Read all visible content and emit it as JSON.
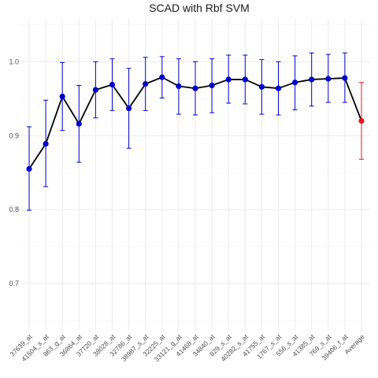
{
  "chart_data": {
    "type": "line",
    "title": "SCAD with Rbf SVM",
    "xlabel": "",
    "ylabel": "",
    "ylim": [
      0.636,
      1.058
    ],
    "yticks": [
      0.7,
      0.8,
      0.9,
      1.0
    ],
    "grid": true,
    "legend": "none",
    "colors": {
      "line": "#000000",
      "point": "#0000cc",
      "errorbar": "#0000cc",
      "average": "#e41a1c",
      "grid": "#ebebeb"
    },
    "categories": [
      "37639_at",
      "41504_s_at",
      "863_g_at",
      "36864_at",
      "37720_at",
      "38028_at",
      "32786_at",
      "38987_s_at",
      "32225_at",
      "33121_g_at",
      "41468_at",
      "34840_at",
      "829_s_at",
      "40282_s_at",
      "41755_at",
      "1767_s_at",
      "556_s_at",
      "41385_at",
      "769_s_at",
      "39406_f_at",
      "Average"
    ],
    "series": [
      {
        "values": [
          0.855,
          0.889,
          0.953,
          0.916,
          0.962,
          0.969,
          0.937,
          0.97,
          0.979,
          0.967,
          0.964,
          0.968,
          0.976,
          0.976,
          0.966,
          0.964,
          0.972,
          0.976,
          0.977,
          0.978,
          0.92
        ],
        "lower": [
          0.799,
          0.831,
          0.907,
          0.864,
          0.924,
          0.934,
          0.883,
          0.934,
          0.951,
          0.929,
          0.928,
          0.931,
          0.944,
          0.943,
          0.929,
          0.928,
          0.935,
          0.94,
          0.945,
          0.945,
          0.868
        ],
        "upper": [
          0.912,
          0.948,
          0.999,
          0.968,
          1.0,
          1.004,
          0.991,
          1.006,
          1.007,
          1.004,
          1.0,
          1.004,
          1.009,
          1.009,
          1.003,
          1.0,
          1.008,
          1.012,
          1.01,
          1.012,
          0.972
        ]
      }
    ]
  }
}
